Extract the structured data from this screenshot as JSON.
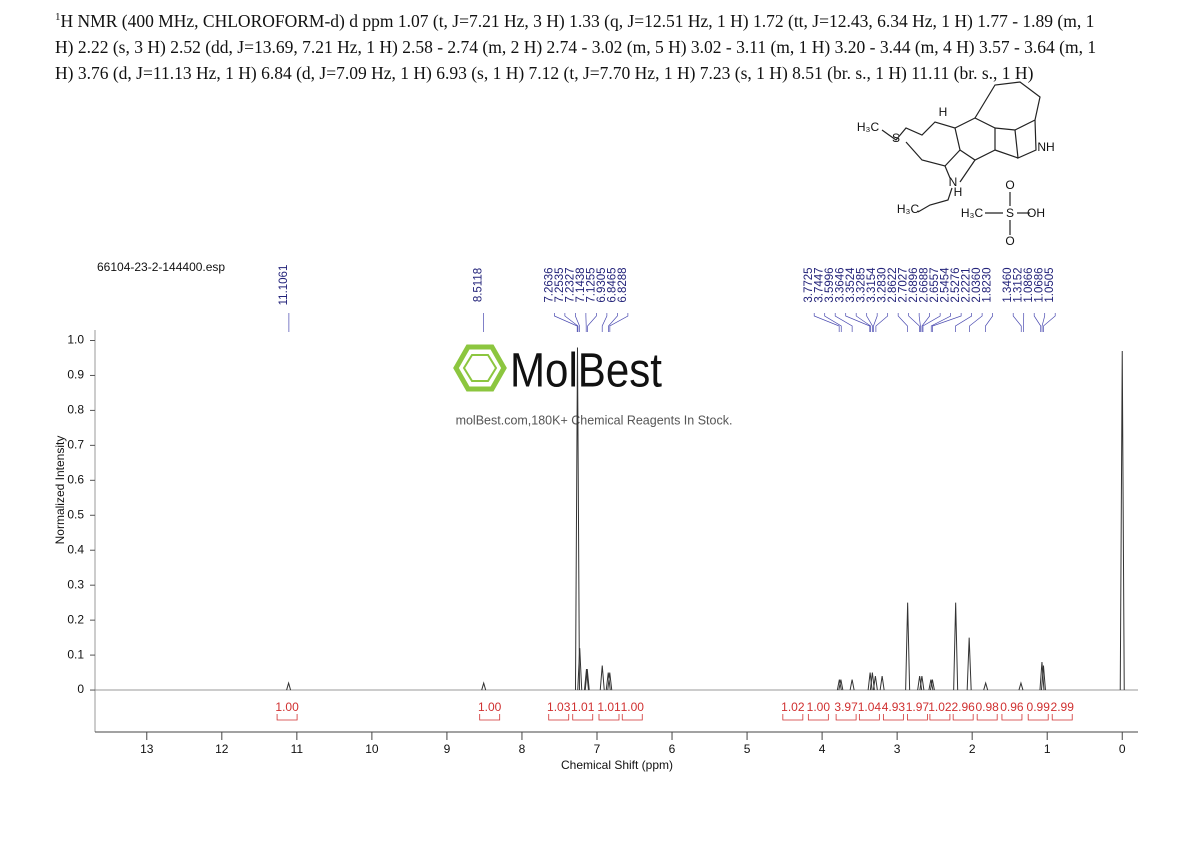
{
  "header": {
    "sup": "1",
    "text": "H NMR (400 MHz, CHLOROFORM-d) d ppm 1.07 (t, J=7.21 Hz, 3 H) 1.33 (q, J=12.51 Hz, 1 H) 1.72 (tt, J=12.43, 6.34 Hz, 1 H) 1.77 - 1.89 (m, 1 H) 2.22 (s, 3 H) 2.52 (dd, J=13.69, 7.21 Hz, 1 H) 2.58 - 2.74 (m, 2 H) 2.74 - 3.02 (m, 5 H) 3.02 - 3.11 (m, 1 H) 3.20 - 3.44 (m, 4 H) 3.57 - 3.64 (m, 1 H) 3.76 (d, J=11.13 Hz, 1 H) 6.84 (d, J=7.09 Hz, 1 H) 6.93 (s, 1 H) 7.12 (t, J=7.70 Hz, 1 H) 7.23 (s, 1 H) 8.51 (br. s., 1 H) 11.11 (br. s., 1 H)"
  },
  "structure": {
    "labels": [
      "H₃C",
      "S",
      "H",
      "NH",
      "N",
      "H",
      "H₃C",
      "O",
      "H₃C",
      "S",
      "OH",
      "O"
    ]
  },
  "watermark": {
    "brand": "MolBest",
    "tagline": "molBest.com,180K+ Chemical Reagents In Stock."
  },
  "chart_data": {
    "type": "stem",
    "file_name": "66104-23-2-144400.esp",
    "x_label": "Chemical Shift (ppm)",
    "y_label": "Normalized Intensity",
    "xlim": [
      13.69,
      -0.21
    ],
    "ylim": [
      -0.12,
      1.03
    ],
    "xticks": [
      13,
      12,
      11,
      10,
      9,
      8,
      7,
      6,
      5,
      4,
      3,
      2,
      1,
      0
    ],
    "yticks": [
      0,
      0.1,
      0.2,
      0.3,
      0.4,
      0.5,
      0.6,
      0.7,
      0.8,
      0.9,
      {
        "value": 1,
        "label": "1.0"
      }
    ],
    "color": "#333333",
    "x": [
      11.11,
      8.51,
      7.26,
      7.23,
      7.14,
      7.13,
      6.93,
      6.85,
      6.83,
      3.77,
      3.75,
      3.6,
      3.36,
      3.33,
      3.29,
      3.2,
      2.86,
      2.7,
      2.67,
      2.55,
      2.53,
      2.22,
      2.04,
      1.82,
      1.35,
      1.07,
      1.05,
      0
    ],
    "values": [
      0.02,
      0.02,
      0.98,
      0.12,
      0.06,
      0.06,
      0.07,
      0.05,
      0.05,
      0.03,
      0.03,
      0.03,
      0.05,
      0.05,
      0.04,
      0.04,
      0.25,
      0.04,
      0.04,
      0.03,
      0.03,
      0.25,
      0.15,
      0.02,
      0.02,
      0.08,
      0.07,
      0.97
    ],
    "peak_labels": [
      "11.1061",
      "8.5118",
      "7.2636",
      "7.2535",
      "7.2327",
      "7.1438",
      "7.1255",
      "6.9305",
      "6.8465",
      "6.8288",
      "3.7725",
      "3.7447",
      "3.5996",
      "3.3646",
      "3.3524",
      "3.3285",
      "3.3154",
      "3.2830",
      "2.8622",
      "2.7027",
      "2.6896",
      "2.6688",
      "2.6557",
      "2.5454",
      "2.5276",
      "2.2221",
      "2.0360",
      "1.8230",
      "1.3460",
      "1.3152",
      "1.0866",
      "1.0686",
      "1.0505"
    ],
    "integrals": {
      "x": [
        11.13,
        8.43,
        7.51,
        7.19,
        6.84,
        6.53,
        4.39,
        4.05,
        3.68,
        3.37,
        3.05,
        2.73,
        2.43,
        2.12,
        1.8,
        1.47,
        1.12,
        0.8
      ],
      "values": [
        1,
        1,
        1.03,
        1.01,
        1.01,
        1,
        1.02,
        1,
        3.97,
        1.04,
        4.93,
        1.97,
        1.02,
        2.96,
        0.98,
        0.96,
        0.99,
        2.99
      ],
      "value_labels": [
        "1.00",
        "1.00",
        "1.03",
        "1.01",
        "1.01",
        "1.00",
        "1.02",
        "1.00",
        "3.97",
        "1.04",
        "4.93",
        "1.97",
        "1.02",
        "2.96",
        "0.98",
        "0.96",
        "0.99",
        "2.99"
      ],
      "color": "#d03030"
    }
  }
}
